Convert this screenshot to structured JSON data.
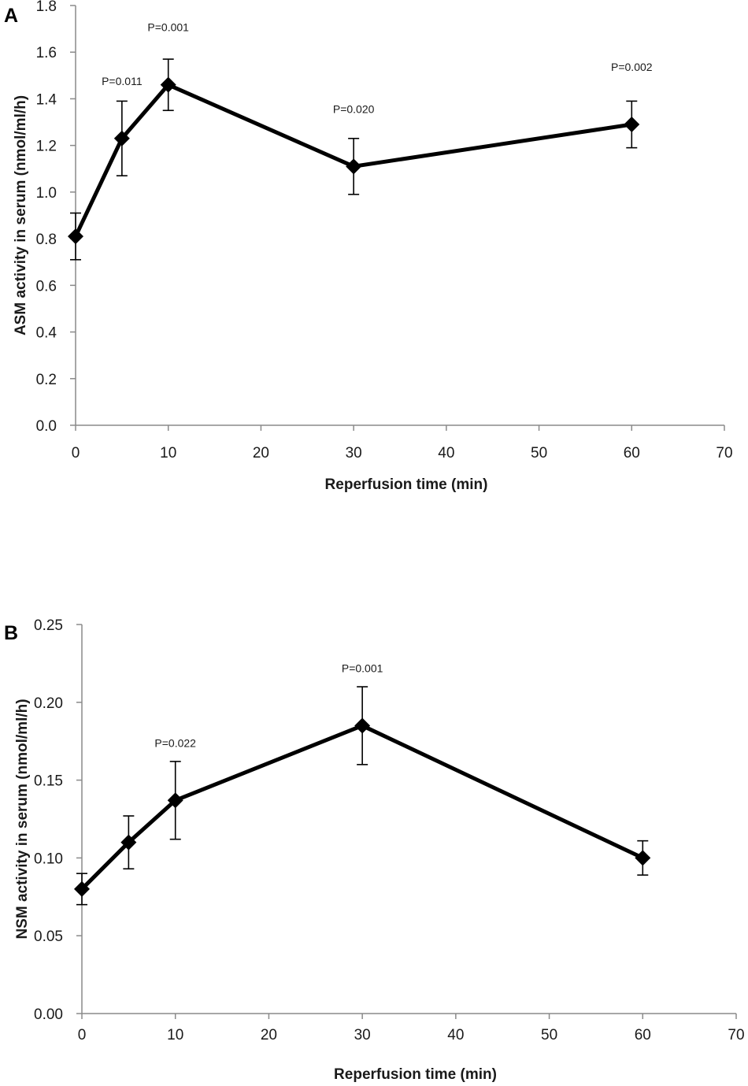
{
  "colors": {
    "line": "#000000",
    "axis": "#8a8a8a",
    "text": "#1a1a1a"
  },
  "chart_data": [
    {
      "type": "line",
      "panel_label": "A",
      "xlabel": "Reperfusion time (min)",
      "ylabel": "ASM activity in serum (nmol/ml/h)",
      "xlim": [
        0,
        70
      ],
      "ylim": [
        0,
        1.8
      ],
      "x_ticks": [
        "0",
        "10",
        "20",
        "30",
        "40",
        "50",
        "60",
        "70"
      ],
      "y_ticks": [
        "0.0",
        "0.2",
        "0.4",
        "0.6",
        "0.8",
        "1.0",
        "1.2",
        "1.4",
        "1.6",
        "1.8"
      ],
      "series": [
        {
          "name": "ASM",
          "x": [
            0,
            5,
            10,
            30,
            60
          ],
          "y": [
            0.81,
            1.23,
            1.46,
            1.11,
            1.29
          ],
          "error": [
            0.1,
            0.16,
            0.11,
            0.12,
            0.1
          ],
          "annotations": [
            "",
            "P=0.011",
            "P=0.001",
            "P=0.020",
            "P=0.002"
          ]
        }
      ]
    },
    {
      "type": "line",
      "panel_label": "B",
      "xlabel": "Reperfusion time (min)",
      "ylabel": "NSM activity in serum (nmol/ml/h)",
      "xlim": [
        0,
        70
      ],
      "ylim": [
        0,
        0.25
      ],
      "x_ticks": [
        "0",
        "10",
        "20",
        "30",
        "40",
        "50",
        "60",
        "70"
      ],
      "y_ticks": [
        "0.00",
        "0.05",
        "0.10",
        "0.15",
        "0.20",
        "0.25"
      ],
      "series": [
        {
          "name": "NSM",
          "x": [
            0,
            5,
            10,
            30,
            60
          ],
          "y": [
            0.08,
            0.11,
            0.137,
            0.185,
            0.1
          ],
          "error": [
            0.01,
            0.017,
            0.025,
            0.025,
            0.011
          ],
          "annotations": [
            "",
            "",
            "P=0.022",
            "P=0.001",
            ""
          ]
        }
      ]
    }
  ]
}
